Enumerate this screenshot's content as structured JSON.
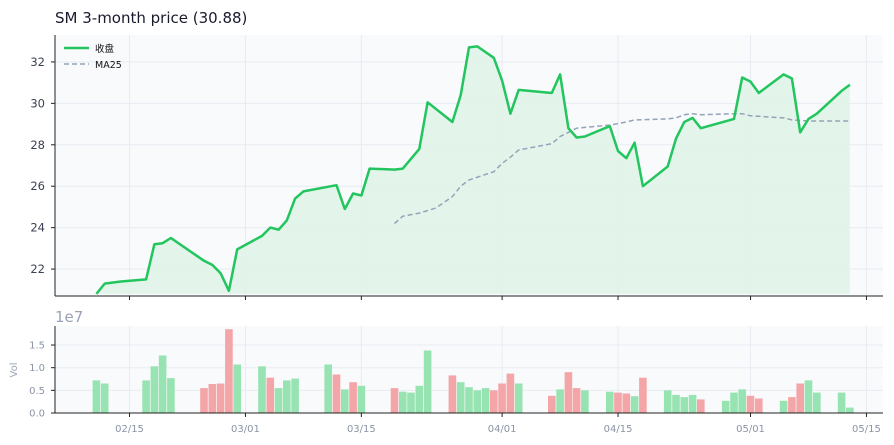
{
  "chart_data": [
    {
      "type": "line",
      "title": "SM  3-month price (30.88)",
      "xlabel": "",
      "ylabel": "",
      "ylim": [
        20.7,
        33.3
      ],
      "yticks": [
        22,
        24,
        26,
        28,
        30,
        32
      ],
      "x_ticks": [
        "02/15",
        "03/01",
        "03/15",
        "04/01",
        "04/15",
        "05/01",
        "05/15"
      ],
      "x_tick_dates": [
        "2025-02-15",
        "2025-03-01",
        "2025-03-15",
        "2025-04-01",
        "2025-04-15",
        "2025-05-01",
        "2025-05-15"
      ],
      "xlim": [
        "2025-02-06",
        "2025-05-17"
      ],
      "grid": true,
      "legend": "top-left",
      "colors": {
        "close": "#22c55e",
        "fill": "#dff3e6",
        "ma": "#94a3b8",
        "background": "#f8fafc"
      },
      "series": [
        {
          "name": "收盘",
          "style": "solid",
          "points": [
            [
              "2025-02-11",
              20.8
            ],
            [
              "2025-02-12",
              21.3
            ],
            [
              "2025-02-13",
              21.35
            ],
            [
              "2025-02-14",
              21.4
            ],
            [
              "2025-02-17",
              21.5
            ],
            [
              "2025-02-18",
              23.2
            ],
            [
              "2025-02-19",
              23.25
            ],
            [
              "2025-02-20",
              23.5
            ],
            [
              "2025-02-24",
              22.4
            ],
            [
              "2025-02-25",
              22.2
            ],
            [
              "2025-02-26",
              21.8
            ],
            [
              "2025-02-27",
              20.95
            ],
            [
              "2025-02-28",
              22.95
            ],
            [
              "2025-03-03",
              23.6
            ],
            [
              "2025-03-04",
              24.0
            ],
            [
              "2025-03-05",
              23.9
            ],
            [
              "2025-03-06",
              24.35
            ],
            [
              "2025-03-07",
              25.4
            ],
            [
              "2025-03-08",
              25.75
            ],
            [
              "2025-03-12",
              26.05
            ],
            [
              "2025-03-13",
              24.9
            ],
            [
              "2025-03-14",
              25.65
            ],
            [
              "2025-03-15",
              25.55
            ],
            [
              "2025-03-16",
              26.85
            ],
            [
              "2025-03-19",
              26.8
            ],
            [
              "2025-03-20",
              26.85
            ],
            [
              "2025-03-22",
              27.8
            ],
            [
              "2025-03-23",
              30.05
            ],
            [
              "2025-03-26",
              29.1
            ],
            [
              "2025-03-27",
              30.4
            ],
            [
              "2025-03-28",
              32.7
            ],
            [
              "2025-03-29",
              32.75
            ],
            [
              "2025-03-31",
              32.2
            ],
            [
              "2025-04-01",
              31.1
            ],
            [
              "2025-04-02",
              29.5
            ],
            [
              "2025-04-03",
              30.65
            ],
            [
              "2025-04-07",
              30.5
            ],
            [
              "2025-04-08",
              31.4
            ],
            [
              "2025-04-09",
              28.8
            ],
            [
              "2025-04-10",
              28.35
            ],
            [
              "2025-04-11",
              28.4
            ],
            [
              "2025-04-14",
              28.9
            ],
            [
              "2025-04-15",
              27.7
            ],
            [
              "2025-04-16",
              27.35
            ],
            [
              "2025-04-17",
              28.1
            ],
            [
              "2025-04-18",
              26.0
            ],
            [
              "2025-04-21",
              26.95
            ],
            [
              "2025-04-22",
              28.3
            ],
            [
              "2025-04-23",
              29.1
            ],
            [
              "2025-04-24",
              29.3
            ],
            [
              "2025-04-25",
              28.8
            ],
            [
              "2025-04-29",
              29.25
            ],
            [
              "2025-04-30",
              31.25
            ],
            [
              "2025-05-01",
              31.05
            ],
            [
              "2025-05-02",
              30.5
            ],
            [
              "2025-05-05",
              31.4
            ],
            [
              "2025-05-06",
              31.2
            ],
            [
              "2025-05-07",
              28.6
            ],
            [
              "2025-05-08",
              29.25
            ],
            [
              "2025-05-09",
              29.5
            ],
            [
              "2025-05-12",
              30.6
            ],
            [
              "2025-05-13",
              30.9
            ]
          ]
        },
        {
          "name": "MA25",
          "style": "dashed",
          "points": [
            [
              "2025-03-19",
              24.2
            ],
            [
              "2025-03-20",
              24.55
            ],
            [
              "2025-03-22",
              24.7
            ],
            [
              "2025-03-24",
              24.95
            ],
            [
              "2025-03-26",
              25.5
            ],
            [
              "2025-03-27",
              26.0
            ],
            [
              "2025-03-28",
              26.3
            ],
            [
              "2025-03-31",
              26.7
            ],
            [
              "2025-04-01",
              27.1
            ],
            [
              "2025-04-02",
              27.4
            ],
            [
              "2025-04-03",
              27.75
            ],
            [
              "2025-04-07",
              28.05
            ],
            [
              "2025-04-08",
              28.4
            ],
            [
              "2025-04-09",
              28.6
            ],
            [
              "2025-04-10",
              28.8
            ],
            [
              "2025-04-14",
              28.95
            ],
            [
              "2025-04-16",
              29.1
            ],
            [
              "2025-04-17",
              29.2
            ],
            [
              "2025-04-21",
              29.25
            ],
            [
              "2025-04-22",
              29.3
            ],
            [
              "2025-04-23",
              29.45
            ],
            [
              "2025-04-24",
              29.5
            ],
            [
              "2025-04-25",
              29.45
            ],
            [
              "2025-04-29",
              29.5
            ],
            [
              "2025-04-30",
              29.5
            ],
            [
              "2025-05-01",
              29.4
            ],
            [
              "2025-05-05",
              29.3
            ],
            [
              "2025-05-06",
              29.2
            ],
            [
              "2025-05-08",
              29.15
            ],
            [
              "2025-05-13",
              29.15
            ]
          ]
        }
      ]
    },
    {
      "type": "bar",
      "ylabel": "Vol",
      "exponent_label": "1e7",
      "ylim": [
        0,
        1.92
      ],
      "yticks": [
        0.0,
        0.5,
        1.0,
        1.5
      ],
      "ytick_labels": [
        "0.0",
        "0.5",
        "1.0",
        "1.5"
      ],
      "x_ticks": [
        "02/15",
        "03/01",
        "03/15",
        "04/01",
        "04/15",
        "05/01",
        "05/15"
      ],
      "grid": true,
      "colors": {
        "up": "#98e3b2",
        "down": "#f3a5a8"
      },
      "bars": [
        [
          "2025-02-11",
          0.72,
          "up"
        ],
        [
          "2025-02-12",
          0.65,
          "up"
        ],
        [
          "2025-02-17",
          0.72,
          "up"
        ],
        [
          "2025-02-18",
          1.03,
          "up"
        ],
        [
          "2025-02-19",
          1.27,
          "up"
        ],
        [
          "2025-02-20",
          0.77,
          "up"
        ],
        [
          "2025-02-24",
          0.55,
          "down"
        ],
        [
          "2025-02-25",
          0.64,
          "down"
        ],
        [
          "2025-02-26",
          0.65,
          "down"
        ],
        [
          "2025-02-27",
          1.85,
          "down"
        ],
        [
          "2025-02-28",
          1.07,
          "up"
        ],
        [
          "2025-03-03",
          1.03,
          "up"
        ],
        [
          "2025-03-04",
          0.78,
          "down"
        ],
        [
          "2025-03-05",
          0.55,
          "up"
        ],
        [
          "2025-03-06",
          0.72,
          "up"
        ],
        [
          "2025-03-07",
          0.76,
          "up"
        ],
        [
          "2025-03-11",
          1.07,
          "up"
        ],
        [
          "2025-03-12",
          0.85,
          "down"
        ],
        [
          "2025-03-13",
          0.52,
          "up"
        ],
        [
          "2025-03-14",
          0.68,
          "down"
        ],
        [
          "2025-03-15",
          0.6,
          "up"
        ],
        [
          "2025-03-19",
          0.55,
          "down"
        ],
        [
          "2025-03-20",
          0.47,
          "up"
        ],
        [
          "2025-03-21",
          0.45,
          "up"
        ],
        [
          "2025-03-22",
          0.6,
          "up"
        ],
        [
          "2025-03-23",
          1.38,
          "up"
        ],
        [
          "2025-03-26",
          0.83,
          "down"
        ],
        [
          "2025-03-27",
          0.68,
          "up"
        ],
        [
          "2025-03-28",
          0.57,
          "up"
        ],
        [
          "2025-03-29",
          0.5,
          "up"
        ],
        [
          "2025-03-30",
          0.55,
          "up"
        ],
        [
          "2025-03-31",
          0.5,
          "down"
        ],
        [
          "2025-04-01",
          0.65,
          "down"
        ],
        [
          "2025-04-02",
          0.87,
          "down"
        ],
        [
          "2025-04-03",
          0.65,
          "up"
        ],
        [
          "2025-04-07",
          0.38,
          "down"
        ],
        [
          "2025-04-08",
          0.52,
          "up"
        ],
        [
          "2025-04-09",
          0.9,
          "down"
        ],
        [
          "2025-04-10",
          0.55,
          "down"
        ],
        [
          "2025-04-11",
          0.5,
          "up"
        ],
        [
          "2025-04-14",
          0.47,
          "up"
        ],
        [
          "2025-04-15",
          0.45,
          "down"
        ],
        [
          "2025-04-16",
          0.43,
          "down"
        ],
        [
          "2025-04-17",
          0.37,
          "up"
        ],
        [
          "2025-04-18",
          0.78,
          "down"
        ],
        [
          "2025-04-21",
          0.5,
          "up"
        ],
        [
          "2025-04-22",
          0.4,
          "up"
        ],
        [
          "2025-04-23",
          0.35,
          "up"
        ],
        [
          "2025-04-24",
          0.4,
          "up"
        ],
        [
          "2025-04-25",
          0.3,
          "down"
        ],
        [
          "2025-04-28",
          0.27,
          "up"
        ],
        [
          "2025-04-29",
          0.45,
          "up"
        ],
        [
          "2025-04-30",
          0.52,
          "up"
        ],
        [
          "2025-05-01",
          0.38,
          "down"
        ],
        [
          "2025-05-02",
          0.32,
          "down"
        ],
        [
          "2025-05-05",
          0.27,
          "up"
        ],
        [
          "2025-05-06",
          0.35,
          "down"
        ],
        [
          "2025-05-07",
          0.65,
          "down"
        ],
        [
          "2025-05-08",
          0.72,
          "up"
        ],
        [
          "2025-05-09",
          0.45,
          "up"
        ],
        [
          "2025-05-12",
          0.45,
          "up"
        ],
        [
          "2025-05-13",
          0.12,
          "up"
        ]
      ]
    }
  ]
}
